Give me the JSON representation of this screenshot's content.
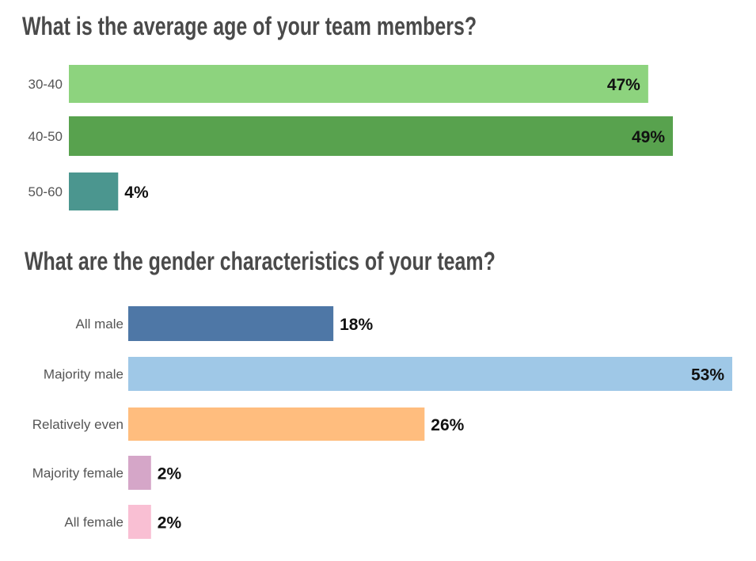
{
  "chart_data": [
    {
      "type": "bar",
      "orientation": "horizontal",
      "title": "What is the average age of your team members?",
      "categories": [
        "30-40",
        "40-50",
        "50-60"
      ],
      "values": [
        47,
        49,
        4
      ],
      "value_labels": [
        "47%",
        "49%",
        "4%"
      ],
      "colors": [
        "#8dd37e",
        "#58a24e",
        "#4b968f"
      ],
      "xlabel": "",
      "ylabel": "",
      "xlim": [
        0,
        49
      ],
      "grid": false,
      "legend": "none"
    },
    {
      "type": "bar",
      "orientation": "horizontal",
      "title": "What are the gender characteristics of your team?",
      "categories": [
        "All male",
        "Majority male",
        "Relatively even",
        "Majority female",
        "All female"
      ],
      "values": [
        18,
        53,
        26,
        2,
        2
      ],
      "value_labels": [
        "18%",
        "53%",
        "26%",
        "2%",
        "2%"
      ],
      "colors": [
        "#4e77a6",
        "#9fc8e7",
        "#ffbd7e",
        "#d5a6c8",
        "#f9bfd3"
      ],
      "xlabel": "",
      "ylabel": "",
      "xlim": [
        0,
        53
      ],
      "grid": false,
      "legend": "none"
    }
  ]
}
